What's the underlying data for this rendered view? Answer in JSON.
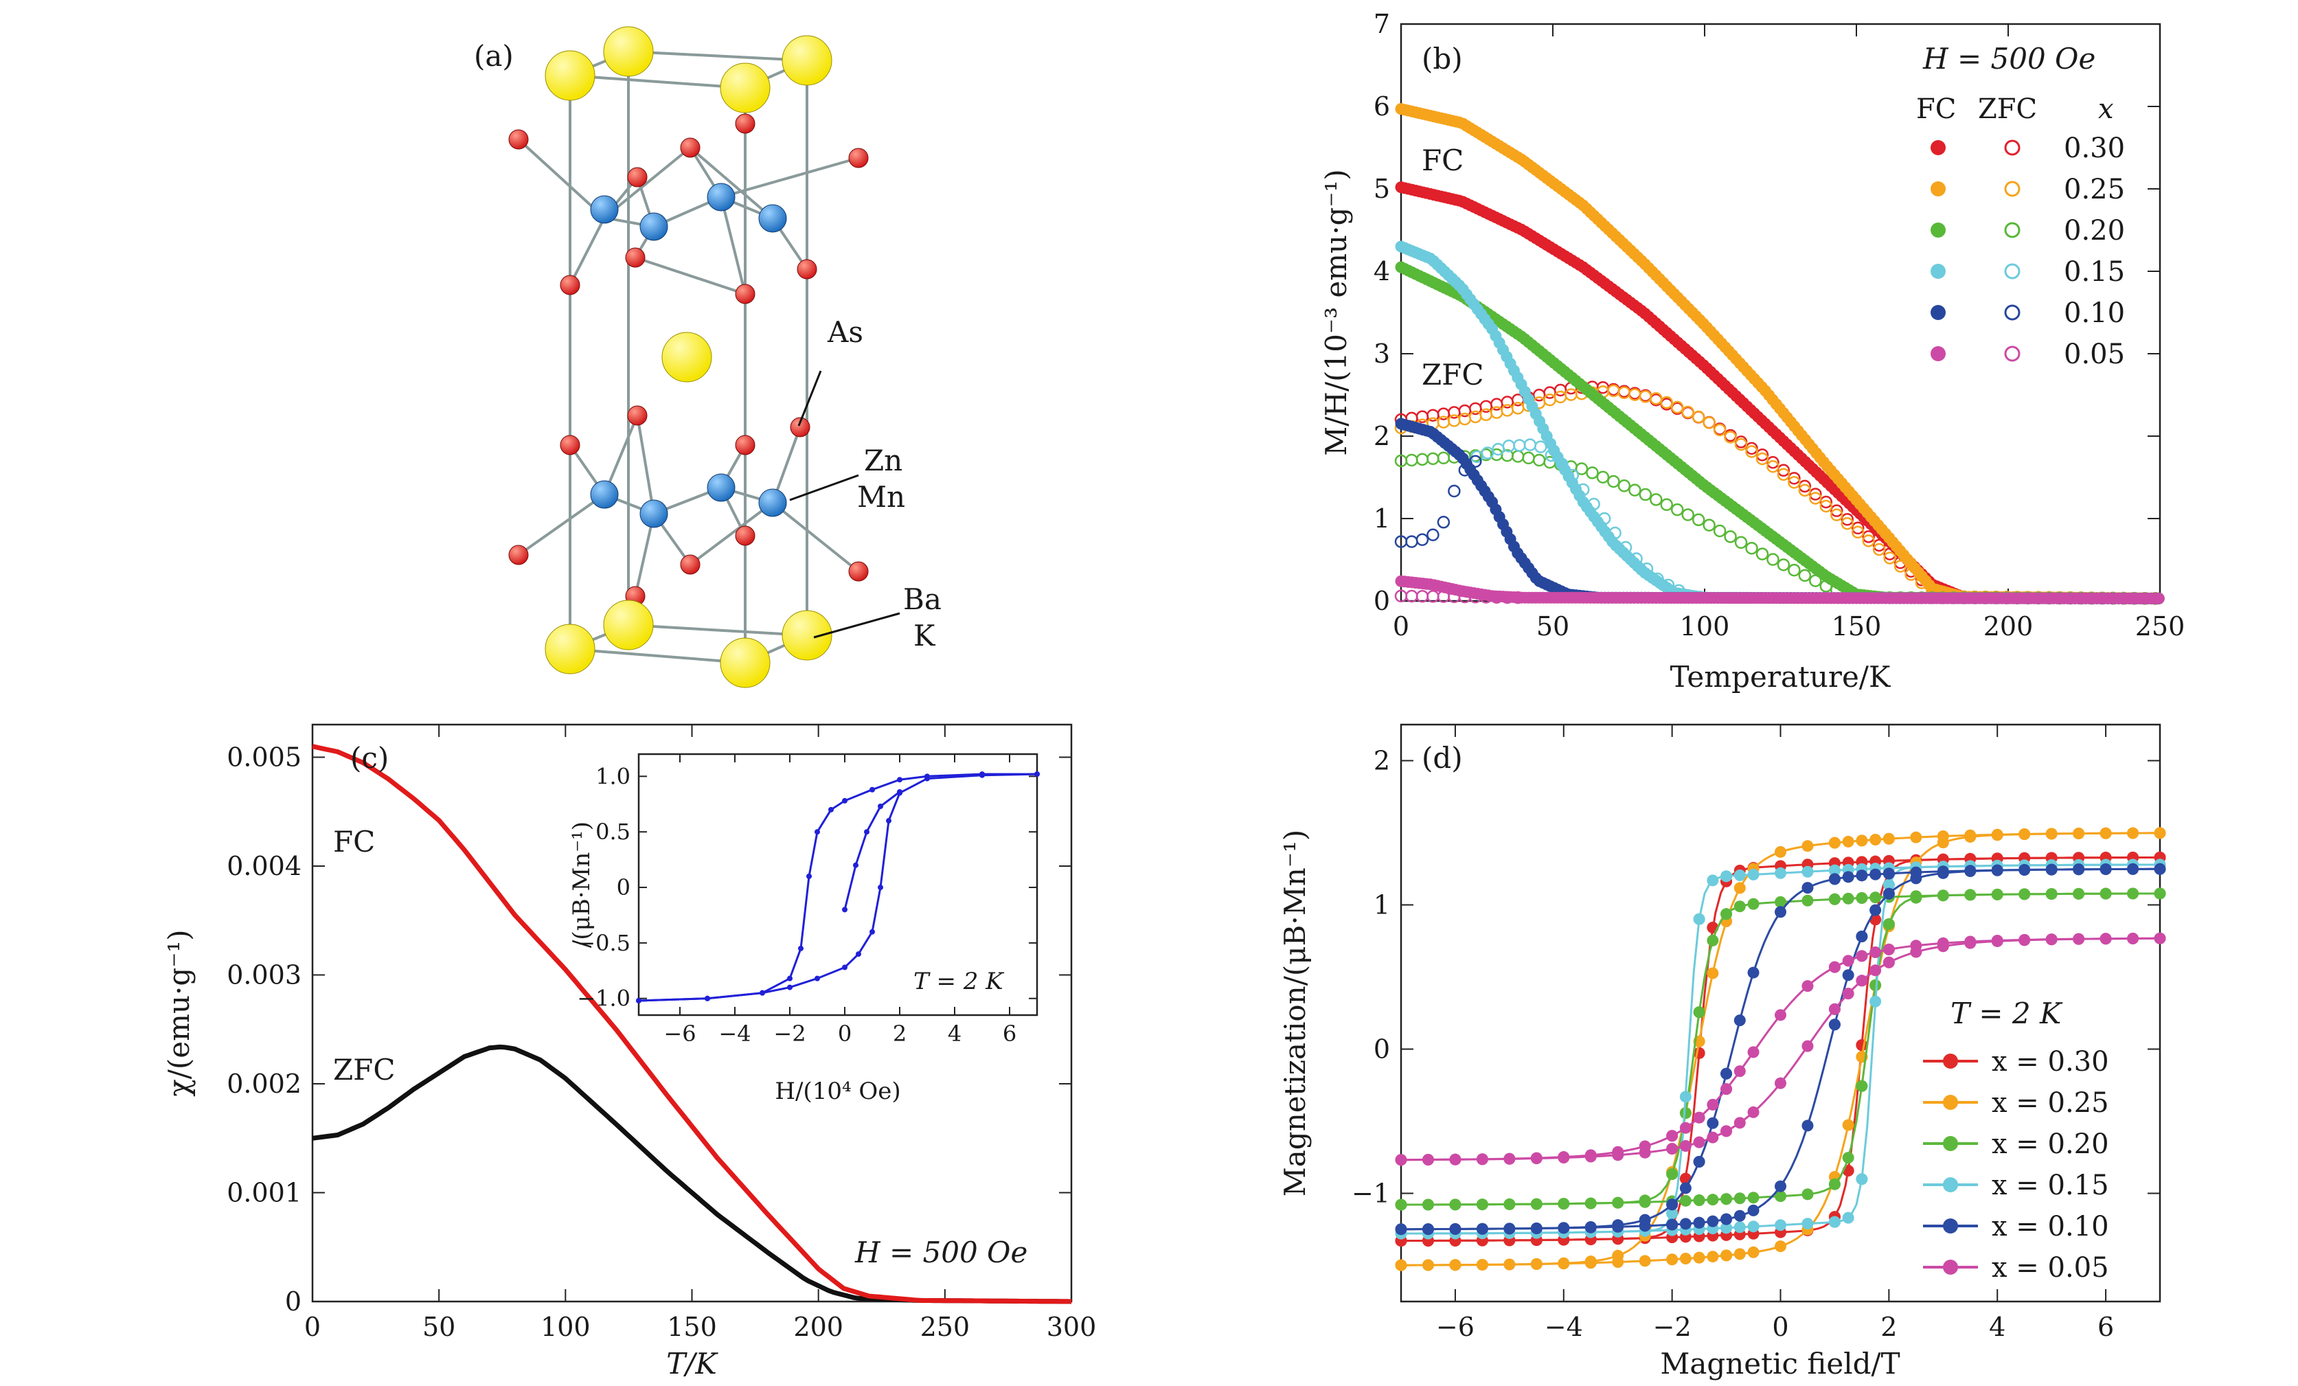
{
  "figure": {
    "panel_a": {
      "label": "(a)",
      "atom_labels": [
        "As",
        "Zn",
        "Mn",
        "Ba",
        "K"
      ],
      "colors": {
        "BaK": "#f5e400",
        "As": "#d11a1a",
        "ZnMn": "#1f6fc0",
        "bond": "#8a9a9a"
      }
    }
  },
  "chart_data": [
    {
      "panel": "(b)",
      "type": "scatter",
      "xlabel": "Temperature/K",
      "ylabel": "M/H/(10⁻³ emu·g⁻¹)",
      "xlim": [
        0,
        250
      ],
      "ylim": [
        0,
        7
      ],
      "xticks": [
        0,
        50,
        100,
        150,
        200,
        250
      ],
      "yticks": [
        0,
        1,
        2,
        3,
        4,
        5,
        6,
        7
      ],
      "annotations": [
        "H = 500 Oe",
        "FC",
        "ZFC"
      ],
      "legend": {
        "headers": [
          "FC",
          "ZFC",
          "x"
        ],
        "placement": "top-right"
      },
      "series": [
        {
          "name": "0.30",
          "color": "#e0202a",
          "fc": [
            [
              0,
              5.02
            ],
            [
              20,
              4.85
            ],
            [
              40,
              4.5
            ],
            [
              60,
              4.05
            ],
            [
              80,
              3.5
            ],
            [
              100,
              2.85
            ],
            [
              120,
              2.15
            ],
            [
              140,
              1.45
            ],
            [
              160,
              0.75
            ],
            [
              175,
              0.2
            ],
            [
              185,
              0.05
            ],
            [
              250,
              0.03
            ]
          ],
          "zfc": [
            [
              0,
              2.2
            ],
            [
              20,
              2.3
            ],
            [
              40,
              2.45
            ],
            [
              55,
              2.58
            ],
            [
              65,
              2.6
            ],
            [
              80,
              2.5
            ],
            [
              100,
              2.2
            ],
            [
              120,
              1.75
            ],
            [
              140,
              1.2
            ],
            [
              160,
              0.6
            ],
            [
              175,
              0.15
            ],
            [
              185,
              0.05
            ],
            [
              250,
              0.03
            ]
          ]
        },
        {
          "name": "0.25",
          "color": "#f5a41c",
          "fc": [
            [
              0,
              5.97
            ],
            [
              20,
              5.8
            ],
            [
              40,
              5.35
            ],
            [
              60,
              4.8
            ],
            [
              80,
              4.1
            ],
            [
              100,
              3.35
            ],
            [
              120,
              2.55
            ],
            [
              140,
              1.65
            ],
            [
              160,
              0.8
            ],
            [
              175,
              0.15
            ],
            [
              185,
              0.05
            ],
            [
              250,
              0.03
            ]
          ],
          "zfc": [
            [
              0,
              2.1
            ],
            [
              20,
              2.2
            ],
            [
              40,
              2.35
            ],
            [
              55,
              2.5
            ],
            [
              70,
              2.55
            ],
            [
              85,
              2.45
            ],
            [
              100,
              2.2
            ],
            [
              120,
              1.7
            ],
            [
              140,
              1.15
            ],
            [
              160,
              0.55
            ],
            [
              175,
              0.12
            ],
            [
              185,
              0.05
            ],
            [
              250,
              0.03
            ]
          ]
        },
        {
          "name": "0.20",
          "color": "#58b838",
          "fc": [
            [
              0,
              4.05
            ],
            [
              20,
              3.7
            ],
            [
              40,
              3.2
            ],
            [
              60,
              2.6
            ],
            [
              80,
              2.0
            ],
            [
              100,
              1.4
            ],
            [
              120,
              0.85
            ],
            [
              140,
              0.3
            ],
            [
              150,
              0.08
            ],
            [
              160,
              0.04
            ],
            [
              250,
              0.03
            ]
          ],
          "zfc": [
            [
              0,
              1.7
            ],
            [
              20,
              1.75
            ],
            [
              30,
              1.78
            ],
            [
              40,
              1.75
            ],
            [
              60,
              1.6
            ],
            [
              80,
              1.3
            ],
            [
              100,
              0.95
            ],
            [
              120,
              0.55
            ],
            [
              140,
              0.18
            ],
            [
              150,
              0.05
            ],
            [
              160,
              0.04
            ],
            [
              250,
              0.03
            ]
          ]
        },
        {
          "name": "0.15",
          "color": "#6ccbdc",
          "fc": [
            [
              0,
              4.3
            ],
            [
              10,
              4.15
            ],
            [
              20,
              3.8
            ],
            [
              30,
              3.3
            ],
            [
              40,
              2.6
            ],
            [
              50,
              1.85
            ],
            [
              60,
              1.2
            ],
            [
              70,
              0.7
            ],
            [
              80,
              0.35
            ],
            [
              90,
              0.1
            ],
            [
              100,
              0.04
            ],
            [
              250,
              0.03
            ]
          ],
          "zfc": [
            [
              25,
              1.75
            ],
            [
              35,
              1.88
            ],
            [
              45,
              1.9
            ],
            [
              55,
              1.6
            ],
            [
              65,
              1.1
            ],
            [
              75,
              0.6
            ],
            [
              85,
              0.25
            ],
            [
              95,
              0.06
            ],
            [
              100,
              0.04
            ]
          ]
        },
        {
          "name": "0.10",
          "color": "#27479d",
          "fc": [
            [
              0,
              2.15
            ],
            [
              10,
              2.05
            ],
            [
              20,
              1.75
            ],
            [
              30,
              1.2
            ],
            [
              38,
              0.6
            ],
            [
              45,
              0.25
            ],
            [
              55,
              0.08
            ],
            [
              65,
              0.04
            ],
            [
              250,
              0.03
            ]
          ],
          "zfc": [
            [
              0,
              0.72
            ],
            [
              5,
              0.72
            ],
            [
              10,
              0.78
            ],
            [
              15,
              1.0
            ],
            [
              18,
              1.4
            ],
            [
              22,
              1.65
            ],
            [
              26,
              1.72
            ]
          ]
        },
        {
          "name": "0.05",
          "color": "#cc4aa5",
          "fc": [
            [
              0,
              0.24
            ],
            [
              10,
              0.2
            ],
            [
              20,
              0.12
            ],
            [
              30,
              0.06
            ],
            [
              40,
              0.04
            ],
            [
              250,
              0.03
            ]
          ],
          "zfc": [
            [
              0,
              0.06
            ],
            [
              20,
              0.05
            ],
            [
              40,
              0.04
            ]
          ]
        }
      ]
    },
    {
      "panel": "(c)",
      "type": "line",
      "xlabel": "T/K",
      "ylabel": "χ/(emu·g⁻¹)",
      "xlim": [
        0,
        300
      ],
      "ylim": [
        0,
        0.0053
      ],
      "xticks": [
        0,
        50,
        100,
        150,
        200,
        250,
        300
      ],
      "yticks": [
        0,
        0.001,
        0.002,
        0.003,
        0.004,
        0.005
      ],
      "ytick_labels": [
        "0",
        "0.001",
        "0.002",
        "0.003",
        "0.004",
        "0.005"
      ],
      "annotations": [
        "H = 500 Oe"
      ],
      "series": [
        {
          "name": "FC",
          "color": "#e11a1a",
          "points": [
            [
              0,
              0.0051
            ],
            [
              10,
              0.00505
            ],
            [
              20,
              0.00495
            ],
            [
              30,
              0.0048
            ],
            [
              40,
              0.00462
            ],
            [
              50,
              0.00442
            ],
            [
              60,
              0.00415
            ],
            [
              70,
              0.00385
            ],
            [
              80,
              0.00355
            ],
            [
              90,
              0.0033
            ],
            [
              100,
              0.00305
            ],
            [
              120,
              0.0025
            ],
            [
              140,
              0.0019
            ],
            [
              160,
              0.00132
            ],
            [
              180,
              0.0008
            ],
            [
              200,
              0.0003
            ],
            [
              210,
              0.00012
            ],
            [
              220,
              5e-05
            ],
            [
              240,
              1e-05
            ],
            [
              300,
              0.0
            ]
          ]
        },
        {
          "name": "ZFC",
          "color": "#111111",
          "points": [
            [
              0,
              0.0015
            ],
            [
              10,
              0.00153
            ],
            [
              20,
              0.00163
            ],
            [
              30,
              0.00178
            ],
            [
              40,
              0.00195
            ],
            [
              50,
              0.0021
            ],
            [
              60,
              0.00225
            ],
            [
              70,
              0.00233
            ],
            [
              75,
              0.00234
            ],
            [
              80,
              0.00232
            ],
            [
              90,
              0.00222
            ],
            [
              100,
              0.00205
            ],
            [
              120,
              0.00163
            ],
            [
              140,
              0.0012
            ],
            [
              160,
              0.0008
            ],
            [
              180,
              0.00045
            ],
            [
              195,
              0.0002
            ],
            [
              205,
              9e-05
            ],
            [
              215,
              3e-05
            ],
            [
              240,
              1e-05
            ],
            [
              300,
              0.0
            ]
          ]
        }
      ],
      "inset": {
        "type": "line",
        "xlabel": "H/(10⁴ Oe)",
        "ylabel": "/(μB·Mn⁻¹)",
        "xlim": [
          -7.5,
          7
        ],
        "ylim": [
          -1.15,
          1.2
        ],
        "xticks": [
          -6,
          -4,
          -2,
          0,
          2,
          4,
          6
        ],
        "yticks": [
          -1.0,
          -0.5,
          0,
          0.5,
          1.0
        ],
        "ytick_labels": [
          "−1.0",
          "−0.5",
          "0",
          "0.5",
          "1.0"
        ],
        "annotation": "T = 2 K",
        "color": "#2020d8",
        "branch_down": [
          [
            7,
            1.02
          ],
          [
            5,
            1.02
          ],
          [
            3,
            1.0
          ],
          [
            2,
            0.97
          ],
          [
            1,
            0.88
          ],
          [
            0,
            0.78
          ],
          [
            -0.5,
            0.7
          ],
          [
            -1,
            0.5
          ],
          [
            -1.3,
            0.1
          ],
          [
            -1.6,
            -0.55
          ],
          [
            -2,
            -0.82
          ],
          [
            -3,
            -0.95
          ],
          [
            -5,
            -1.0
          ],
          [
            -7.5,
            -1.02
          ]
        ],
        "branch_up": [
          [
            -7.5,
            -1.02
          ],
          [
            -5,
            -1.0
          ],
          [
            -3,
            -0.95
          ],
          [
            -2,
            -0.9
          ],
          [
            -1,
            -0.82
          ],
          [
            0,
            -0.72
          ],
          [
            0.5,
            -0.6
          ],
          [
            1,
            -0.4
          ],
          [
            1.3,
            0.0
          ],
          [
            1.6,
            0.6
          ],
          [
            2,
            0.85
          ],
          [
            3,
            0.98
          ],
          [
            5,
            1.01
          ],
          [
            7,
            1.02
          ]
        ],
        "virgin": [
          [
            0,
            -0.2
          ],
          [
            0.4,
            0.2
          ],
          [
            0.8,
            0.5
          ],
          [
            1.3,
            0.73
          ],
          [
            2,
            0.86
          ]
        ]
      }
    },
    {
      "panel": "(d)",
      "type": "line",
      "xlabel": "Magnetic field/T",
      "ylabel": "Magnetization/(μB·Mn⁻¹)",
      "xlim": [
        -7,
        7
      ],
      "ylim": [
        -1.75,
        2.25
      ],
      "xticks": [
        -6,
        -4,
        -2,
        0,
        2,
        4,
        6
      ],
      "yticks": [
        -1,
        0,
        1,
        2
      ],
      "annotations": [
        "T = 2 K"
      ],
      "legend_placement": "lower-right",
      "series": [
        {
          "name": "x = 0.30",
          "color": "#e02a2a",
          "ms": 1.33,
          "hc": 1.5,
          "w": 0.3,
          "slope": 0.12
        },
        {
          "name": "x = 0.25",
          "color": "#f5a41c",
          "ms": 1.5,
          "hc": 1.55,
          "w": 0.7,
          "slope": 0.2
        },
        {
          "name": "x = 0.20",
          "color": "#5cb83c",
          "ms": 1.08,
          "hc": 1.6,
          "w": 0.35,
          "slope": 0.12
        },
        {
          "name": "x = 0.15",
          "color": "#6ccbdc",
          "ms": 1.28,
          "hc": 1.7,
          "w": 0.2,
          "slope": 0.12
        },
        {
          "name": "x = 0.10",
          "color": "#2c4ba3",
          "ms": 1.25,
          "hc": 0.9,
          "w": 0.8,
          "slope": 0.15
        },
        {
          "name": "x = 0.05",
          "color": "#cc4aa5",
          "ms": 0.77,
          "hc": 0.5,
          "w": 1.3,
          "slope": 0.25
        }
      ]
    }
  ]
}
